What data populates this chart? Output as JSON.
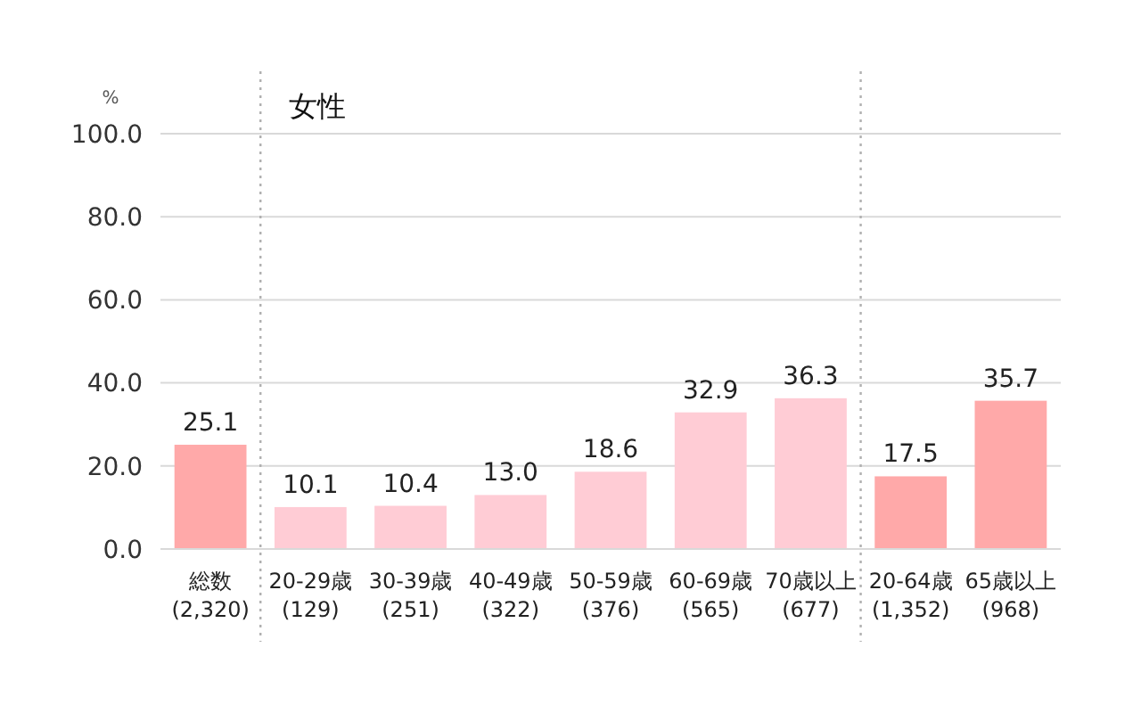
{
  "chart_data": {
    "type": "bar",
    "title": "女性",
    "ylabel": "%",
    "categories": [
      "総数\n(2,320)",
      "20-29歳\n(129)",
      "30-39歳\n(251)",
      "40-49歳\n(322)",
      "50-59歳\n(376)",
      "60-69歳\n(565)",
      "70歳以上\n(677)",
      "20-64歳\n(1,352)",
      "65歳以上\n(968)"
    ],
    "values": [
      25.1,
      10.1,
      10.4,
      13.0,
      18.6,
      32.9,
      36.3,
      17.5,
      35.7
    ],
    "colors": [
      "#ffa9a9",
      "#ffccd5",
      "#ffccd5",
      "#ffccd5",
      "#ffccd5",
      "#ffccd5",
      "#ffccd5",
      "#ffa9a9",
      "#ffa9a9"
    ],
    "value_labels": [
      "25.1",
      "10.1",
      "10.4",
      "13.0",
      "18.6",
      "32.9",
      "36.3",
      "17.5",
      "35.7"
    ],
    "ylim": [
      0,
      100
    ],
    "yticks": [
      {
        "value": 0,
        "label": "0.0"
      },
      {
        "value": 20,
        "label": "20.0"
      },
      {
        "value": 40,
        "label": "40.0"
      },
      {
        "value": 60,
        "label": "60.0"
      },
      {
        "value": 80,
        "label": "80.0"
      },
      {
        "value": 100,
        "label": "100.0"
      }
    ],
    "grid": "y"
  }
}
